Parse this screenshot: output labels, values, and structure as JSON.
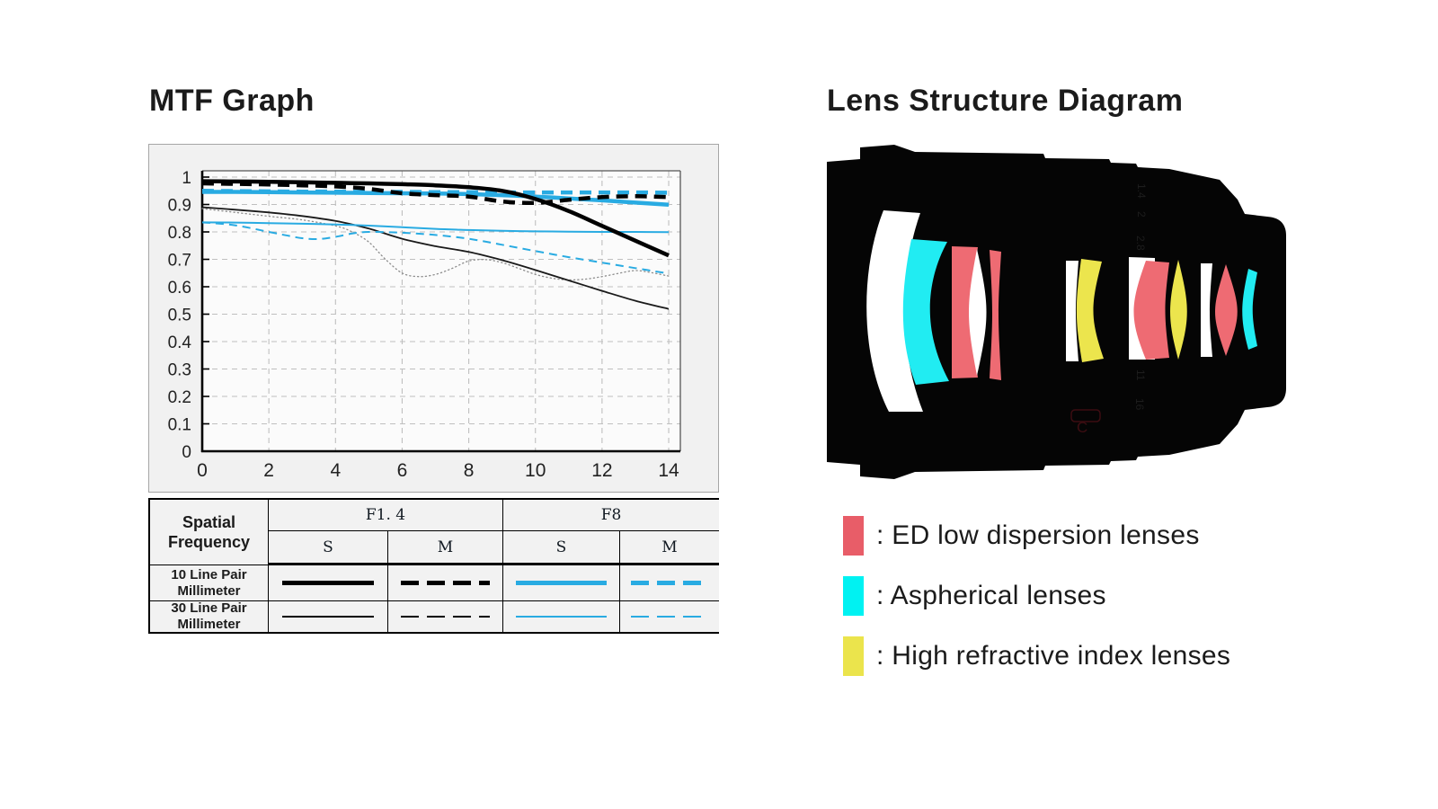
{
  "left_panel": {
    "title": "MTF Graph"
  },
  "right_panel": {
    "title": "Lens Structure Diagram"
  },
  "chart_data": {
    "type": "line",
    "title": "MTF Graph",
    "xlabel": "",
    "ylabel": "",
    "xlim": [
      0,
      14.35
    ],
    "ylim": [
      0,
      1.023
    ],
    "grid": "dashed",
    "x_ticks": {
      "values": [
        0,
        2,
        4,
        6,
        8,
        10,
        12,
        14
      ],
      "labels": [
        "0",
        "2",
        "4",
        "6",
        "8",
        "10",
        "12",
        "14"
      ]
    },
    "y_ticks": {
      "values": [
        1,
        0.9,
        0.8,
        0.7,
        0.6,
        0.5,
        0.4,
        0.3,
        0.2,
        0.1,
        0
      ],
      "labels": [
        "1",
        "0.9",
        "0.8",
        "0.7",
        "0.6",
        "0.5",
        "0.4",
        "0.3",
        "0.2",
        "0.1",
        "0"
      ]
    },
    "x_gridlines": [
      2,
      4,
      6,
      8,
      10,
      12,
      14
    ],
    "colors": {
      "f14": "#000000",
      "f8": "#29abe2",
      "f14_m30": "#8c8c8c"
    },
    "series": [
      {
        "name": "F1.4 30lp/mm M",
        "color": "#8c8c8c",
        "width": 1.3,
        "dash": "dotted",
        "x": [
          0,
          1,
          2,
          3,
          4,
          4.5,
          5,
          5.5,
          6,
          6.5,
          7,
          7.5,
          8,
          8.5,
          9,
          9.5,
          10,
          10.5,
          11,
          11.5,
          12,
          12.5,
          13,
          13.5,
          14
        ],
        "y": [
          0.885,
          0.871,
          0.857,
          0.844,
          0.822,
          0.8,
          0.763,
          0.7,
          0.65,
          0.637,
          0.645,
          0.667,
          0.694,
          0.699,
          0.688,
          0.667,
          0.645,
          0.631,
          0.625,
          0.628,
          0.637,
          0.649,
          0.659,
          0.651,
          0.639
        ]
      },
      {
        "name": "F1.4 30lp/mm S",
        "color": "#1a1a1a",
        "width": 1.8,
        "dash": "solid",
        "x": [
          0,
          1,
          2,
          3,
          4,
          5,
          6,
          7,
          8,
          9,
          10,
          11,
          12,
          13,
          14
        ],
        "y": [
          0.89,
          0.881,
          0.871,
          0.858,
          0.84,
          0.812,
          0.775,
          0.748,
          0.727,
          0.697,
          0.661,
          0.623,
          0.585,
          0.549,
          0.519
        ]
      },
      {
        "name": "F8 30lp/mm S",
        "color": "#29abe2",
        "width": 2.0,
        "dash": "solid",
        "x": [
          0,
          1,
          2,
          3,
          4,
          5,
          6,
          7,
          8,
          9,
          10,
          11,
          12,
          13,
          14
        ],
        "y": [
          0.835,
          0.834,
          0.832,
          0.83,
          0.827,
          0.823,
          0.817,
          0.811,
          0.807,
          0.804,
          0.802,
          0.801,
          0.8,
          0.8,
          0.799
        ]
      },
      {
        "name": "F8 30lp/mm M",
        "color": "#29abe2",
        "width": 2.0,
        "dash": "dashed",
        "x": [
          0,
          1,
          2,
          2.5,
          3,
          3.5,
          4,
          4.5,
          5,
          6,
          7,
          8,
          9,
          10,
          11,
          12,
          13,
          14
        ],
        "y": [
          0.835,
          0.824,
          0.8,
          0.788,
          0.777,
          0.774,
          0.782,
          0.794,
          0.8,
          0.797,
          0.789,
          0.775,
          0.753,
          0.73,
          0.708,
          0.688,
          0.668,
          0.648
        ]
      },
      {
        "name": "F8 10lp/mm S",
        "color": "#29abe2",
        "width": 4.5,
        "dash": "solid",
        "x": [
          0,
          1,
          2,
          3,
          4,
          5,
          6,
          7,
          8,
          9,
          10,
          11,
          12,
          13,
          14
        ],
        "y": [
          0.946,
          0.946,
          0.945,
          0.944,
          0.943,
          0.942,
          0.941,
          0.94,
          0.938,
          0.934,
          0.929,
          0.922,
          0.915,
          0.907,
          0.899
        ]
      },
      {
        "name": "F8 10lp/mm M",
        "color": "#29abe2",
        "width": 4.5,
        "dash": "dashed",
        "x": [
          0,
          1,
          2,
          3,
          4,
          5,
          6,
          7,
          8,
          9,
          10,
          11,
          12,
          13,
          14
        ],
        "y": [
          0.95,
          0.949,
          0.948,
          0.947,
          0.947,
          0.946,
          0.946,
          0.945,
          0.945,
          0.944,
          0.944,
          0.944,
          0.944,
          0.944,
          0.943
        ]
      },
      {
        "name": "F1.4 10lp/mm S",
        "color": "#000000",
        "width": 4.5,
        "dash": "solid",
        "x": [
          0,
          1,
          2,
          3,
          4,
          5,
          6,
          7,
          8,
          9,
          10,
          11,
          12,
          13,
          14
        ],
        "y": [
          0.985,
          0.984,
          0.983,
          0.981,
          0.979,
          0.977,
          0.974,
          0.97,
          0.963,
          0.95,
          0.92,
          0.876,
          0.822,
          0.768,
          0.714
        ]
      },
      {
        "name": "F1.4 10lp/mm M",
        "color": "#000000",
        "width": 4.5,
        "dash": "dashed",
        "x": [
          0,
          1,
          2,
          3,
          4,
          5,
          6,
          7,
          8,
          9,
          10,
          11,
          12,
          13,
          14
        ],
        "y": [
          0.977,
          0.975,
          0.973,
          0.97,
          0.966,
          0.957,
          0.941,
          0.934,
          0.929,
          0.911,
          0.906,
          0.917,
          0.927,
          0.93,
          0.927
        ]
      }
    ]
  },
  "spec_table": {
    "corner_label": "Spatial Frequency",
    "col_groups": [
      "F1. 4",
      "F8"
    ],
    "sub_cols": [
      "S",
      "M",
      "S",
      "M"
    ],
    "rows": [
      {
        "label": "10 Line Pair\nMillimeter",
        "samples": [
          {
            "color": "#000000",
            "dash": false,
            "thick": true
          },
          {
            "color": "#000000",
            "dash": true,
            "thick": true
          },
          {
            "color": "#29abe2",
            "dash": false,
            "thick": true
          },
          {
            "color": "#29abe2",
            "dash": true,
            "thick": true
          }
        ]
      },
      {
        "label": "30 Line Pair\nMillimeter",
        "samples": [
          {
            "color": "#000000",
            "dash": false,
            "thick": false
          },
          {
            "color": "#000000",
            "dash": true,
            "thick": false
          },
          {
            "color": "#29abe2",
            "dash": false,
            "thick": false
          },
          {
            "color": "#29abe2",
            "dash": true,
            "thick": false
          }
        ]
      }
    ]
  },
  "lens_diagram": {
    "colors": {
      "barrel": "#050505",
      "plain_glass": "#ffffff",
      "ed": "#ee6b73",
      "aspherical": "#21ecf2",
      "high_refractive": "#ece54d"
    },
    "barrel_markings": [
      "1.4",
      "2",
      "2.8",
      "11",
      "16"
    ],
    "mark_c": "C"
  },
  "lens_legend": {
    "items": [
      {
        "color": "#e85d68",
        "label": ": ED low dispersion lenses"
      },
      {
        "color": "#00f2f2",
        "label": ": Aspherical lenses"
      },
      {
        "color": "#ebe44c",
        "label": ": High refractive index lenses"
      }
    ]
  }
}
